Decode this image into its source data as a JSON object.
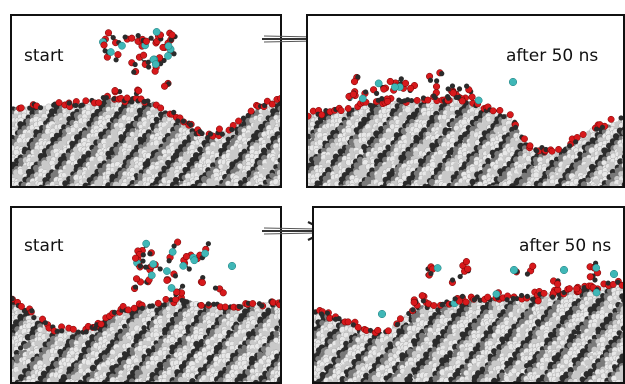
{
  "panels": [
    {
      "label": "start"
    },
    {
      "label": "after 50 ns"
    },
    {
      "label": "start"
    },
    {
      "label": "after 50 ns"
    }
  ],
  "colors": {
    "oxygen": "#d7191c",
    "carbon": "#2b2b2b",
    "hydrogen": "#e8e8e8",
    "ion": "#3fb7b7",
    "frame": "#111111"
  }
}
